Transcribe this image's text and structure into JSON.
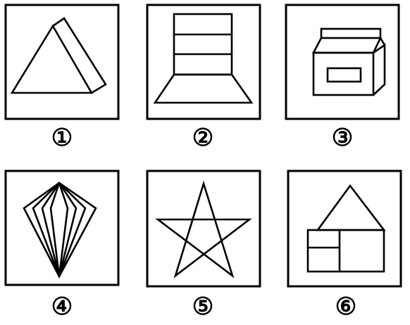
{
  "panels": [
    {
      "label": "①",
      "icon": "triangular-prism-icon"
    },
    {
      "label": "②",
      "icon": "stacked-rectangles-on-trapezoid-icon"
    },
    {
      "label": "③",
      "icon": "box-with-lid-icon"
    },
    {
      "label": "④",
      "icon": "kite-fan-lines-icon"
    },
    {
      "label": "⑤",
      "icon": "five-point-star-icon"
    },
    {
      "label": "⑥",
      "icon": "house-icon"
    }
  ]
}
